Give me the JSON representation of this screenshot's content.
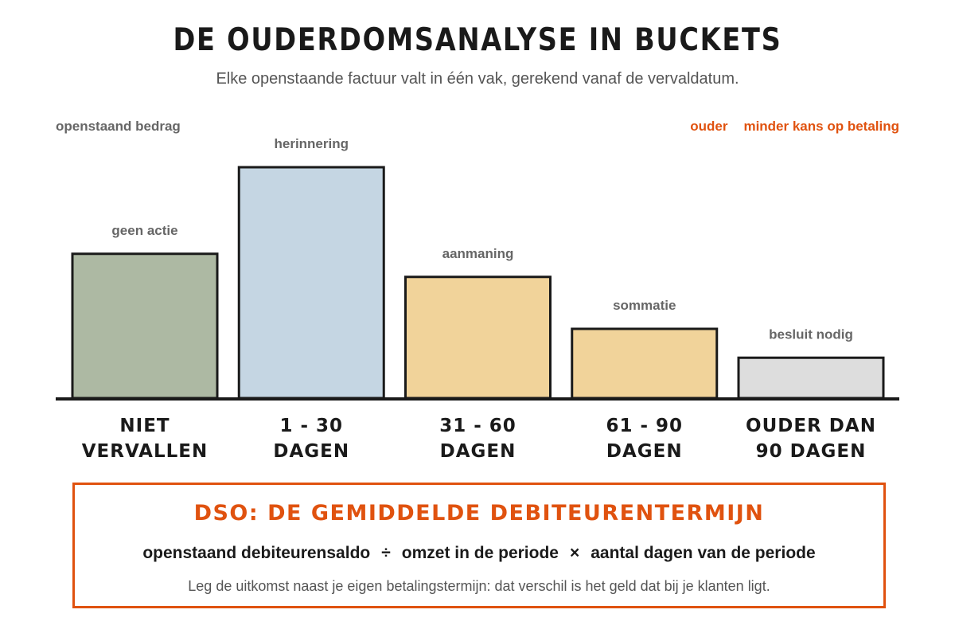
{
  "header": {
    "title": "DE OUDERDOMSANALYSE IN BUCKETS",
    "subtitle": "Elke openstaande factuur valt in één vak, gerekend vanaf de vervaldatum."
  },
  "legend": {
    "left_label": "openstaand bedrag",
    "right_label_1": "ouder",
    "right_label_2": "minder kans op betaling"
  },
  "chart_data": {
    "type": "bar",
    "categories": [
      "NIET\nVERVALLEN",
      "1 - 30\nDAGEN",
      "31 - 60\nDAGEN",
      "61 - 90\nDAGEN",
      "OUDER DAN\n90 DAGEN"
    ],
    "values": [
      100,
      160,
      84,
      48,
      28
    ],
    "bar_labels": [
      "geen actie",
      "herinnering",
      "aanmaning",
      "sommatie",
      "besluit nodig"
    ],
    "colors": [
      "#adb9a3",
      "#c5d6e3",
      "#f1d39a",
      "#f1d39a",
      "#dddddd"
    ],
    "ylim": [
      0,
      160
    ],
    "ylabel": "openstaand bedrag",
    "grid": false,
    "axis_ticks": false
  },
  "dso": {
    "title": "DSO: DE GEMIDDELDE DEBITEURENTERMIJN",
    "term1": "openstaand debiteurensaldo",
    "op1": "÷",
    "term2": "omzet in de periode",
    "op2": "×",
    "term3": "aantal dagen van de periode",
    "note": "Leg de uitkomst naast je eigen betalingstermijn: dat verschil is het geld dat bij je klanten ligt."
  },
  "colors": {
    "accent": "#e0520f",
    "bar_outline": "#1a1a1a"
  }
}
